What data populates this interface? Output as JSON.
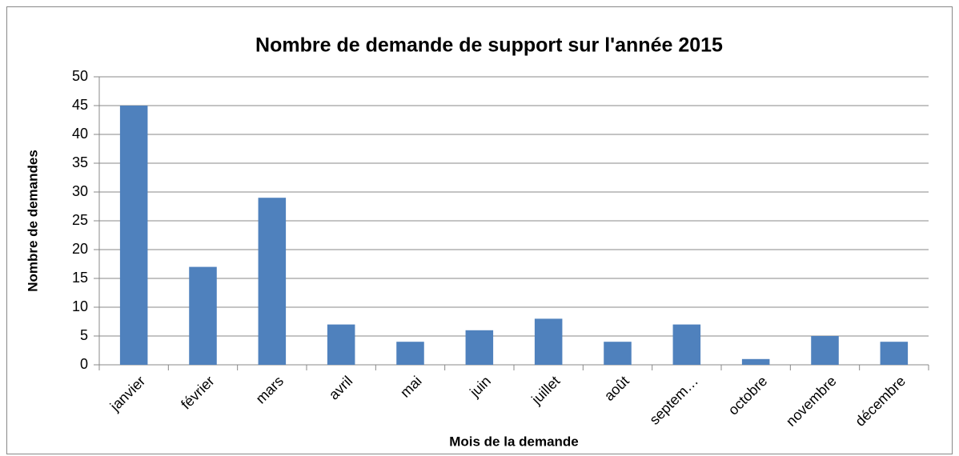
{
  "chart_data": {
    "type": "bar",
    "title": "Nombre de demande de support sur l'année 2015",
    "x_label": "Mois de la demande",
    "y_label": "Nombre de demandes",
    "categories": [
      "janvier",
      "février",
      "mars",
      "avril",
      "mai",
      "juin",
      "juillet",
      "août",
      "septem…",
      "octobre",
      "novembre",
      "décembre"
    ],
    "values": [
      45,
      17,
      29,
      7,
      4,
      6,
      8,
      4,
      7,
      1,
      5,
      4
    ],
    "color": "#4f81bd",
    "ylim": [
      0,
      50
    ],
    "yticks": [
      0,
      5,
      10,
      15,
      20,
      25,
      30,
      35,
      40,
      45,
      50
    ],
    "grid": true
  }
}
